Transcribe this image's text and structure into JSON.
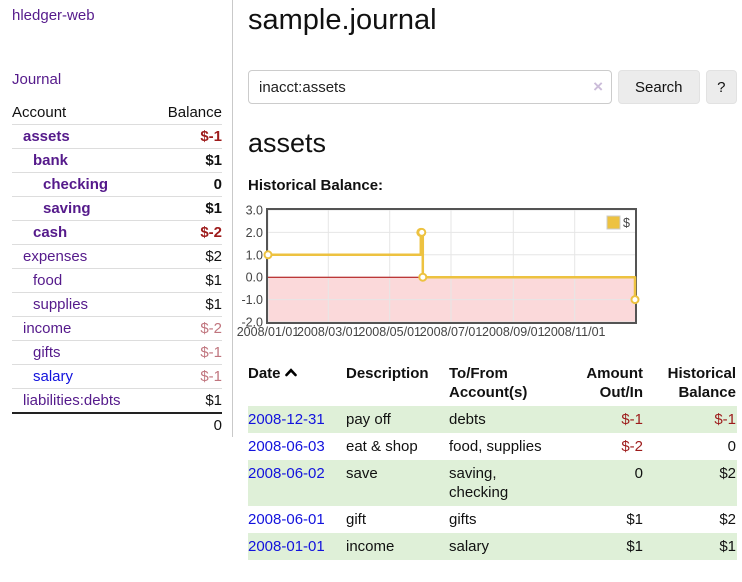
{
  "app": {
    "title": "hledger-web"
  },
  "sidebar": {
    "journal_link": "Journal",
    "accounts_table": {
      "headers": {
        "account": "Account",
        "balance": "Balance"
      },
      "rows": [
        {
          "name": "assets",
          "balance": "$-1",
          "depth": 1,
          "bold": true,
          "balance_style": "neg"
        },
        {
          "name": "bank",
          "balance": "$1",
          "depth": 2,
          "bold": true,
          "balance_style": "pos"
        },
        {
          "name": "checking",
          "balance": "0",
          "depth": 3,
          "bold": true,
          "balance_style": "pos"
        },
        {
          "name": "saving",
          "balance": "$1",
          "depth": 3,
          "bold": true,
          "balance_style": "pos"
        },
        {
          "name": "cash",
          "balance": "$-2",
          "depth": 2,
          "bold": true,
          "balance_style": "neg"
        },
        {
          "name": "expenses",
          "balance": "$2",
          "depth": 1,
          "bold": false,
          "balance_style": "pos"
        },
        {
          "name": "food",
          "balance": "$1",
          "depth": 2,
          "bold": false,
          "balance_style": "pos"
        },
        {
          "name": "supplies",
          "balance": "$1",
          "depth": 2,
          "bold": false,
          "balance_style": "pos"
        },
        {
          "name": "income",
          "balance": "$-2",
          "depth": 1,
          "bold": false,
          "balance_style": "dimneg"
        },
        {
          "name": "gifts",
          "balance": "$-1",
          "depth": 2,
          "bold": false,
          "balance_style": "dimneg"
        },
        {
          "name": "salary",
          "balance": "$-1",
          "depth": 2,
          "bold": false,
          "balance_style": "dimneg",
          "link_style": "blue"
        },
        {
          "name": "liabilities:debts",
          "balance": "$1",
          "depth": 1,
          "bold": false,
          "balance_style": "pos"
        }
      ],
      "total": "0"
    }
  },
  "header": {
    "title": "sample.journal"
  },
  "search": {
    "value": "inacct:assets",
    "clear_icon": "×",
    "button_label": "Search",
    "help_label": "?"
  },
  "account_page": {
    "title": "assets",
    "chart_label": "Historical Balance:"
  },
  "chart_data": {
    "type": "line",
    "title": "assets historical balance",
    "step": true,
    "series": [
      {
        "name": "$",
        "color": "#edc240",
        "points": [
          [
            "2008-01-01",
            1
          ],
          [
            "2008-06-01",
            2
          ],
          [
            "2008-06-02",
            2
          ],
          [
            "2008-06-03",
            0
          ],
          [
            "2008-12-31",
            -1
          ]
        ]
      }
    ],
    "x_ticks": [
      "2008/01/01",
      "2008/03/01",
      "2008/05/01",
      "2008/07/01",
      "2008/09/01",
      "2008/11/01"
    ],
    "y_ticks": [
      3.0,
      2.0,
      1.0,
      0.0,
      -1.0,
      -2.0
    ],
    "ylim": [
      -2,
      3
    ],
    "x_range": [
      "2008-01-01",
      "2008-12-31"
    ],
    "legend": "$",
    "legend_position": "top-right",
    "grid": true,
    "colors": {
      "grid": "#e6e6e6",
      "border": "#545454",
      "negative_region": "#fbd9da",
      "zero_line": "#aa0000"
    }
  },
  "register_table": {
    "headers": {
      "date": "Date",
      "description": "Description",
      "tofrom": "To/From Account(s)",
      "amount": "Amount Out/In",
      "balance": "Historical Balance"
    },
    "rows": [
      {
        "date": "2008-12-31",
        "description": "pay off",
        "accounts": "debts",
        "amount": "$-1",
        "amount_style": "neg",
        "balance": "$-1",
        "balance_style": "neg"
      },
      {
        "date": "2008-06-03",
        "description": "eat & shop",
        "accounts": "food, supplies",
        "amount": "$-2",
        "amount_style": "neg",
        "balance": "0",
        "balance_style": "pos"
      },
      {
        "date": "2008-06-02",
        "description": "save",
        "accounts": "saving, checking",
        "amount": "0",
        "amount_style": "pos",
        "balance": "$2",
        "balance_style": "pos"
      },
      {
        "date": "2008-06-01",
        "description": "gift",
        "accounts": "gifts",
        "amount": "$1",
        "amount_style": "pos",
        "balance": "$2",
        "balance_style": "pos"
      },
      {
        "date": "2008-01-01",
        "description": "income",
        "accounts": "salary",
        "amount": "$1",
        "amount_style": "pos",
        "balance": "$1",
        "balance_style": "pos"
      }
    ]
  }
}
